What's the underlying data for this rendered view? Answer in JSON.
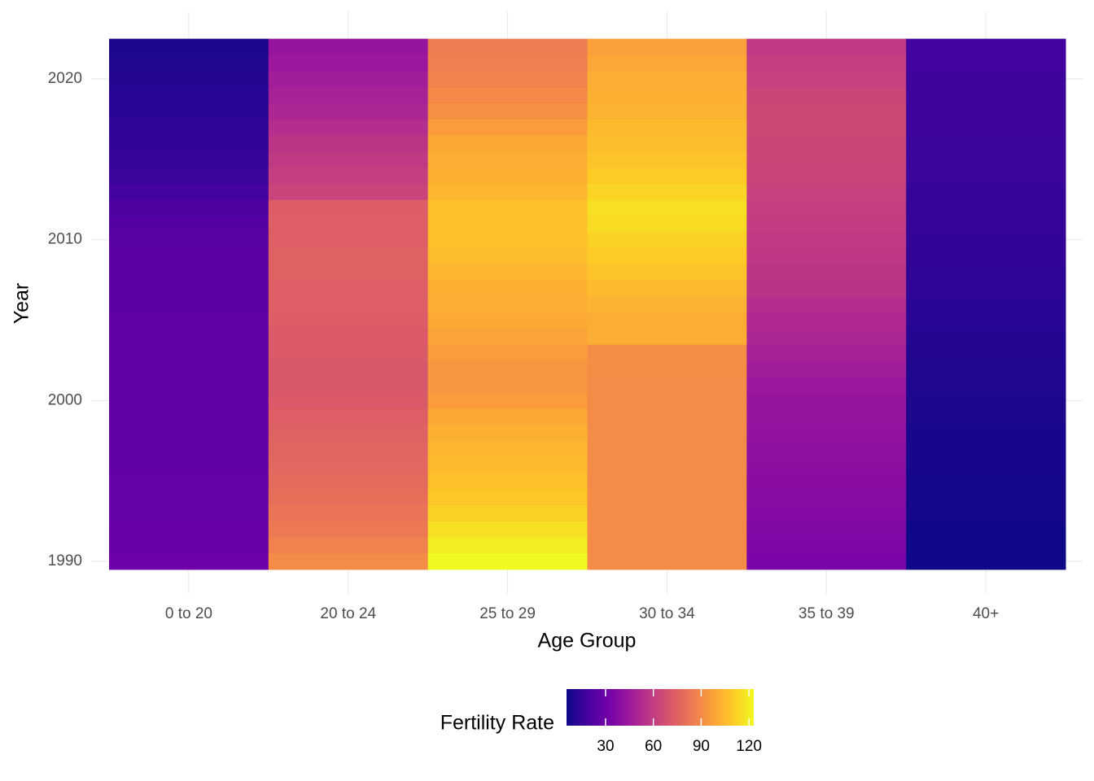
{
  "chart_data": {
    "type": "heatmap",
    "xlabel": "Age Group",
    "ylabel": "Year",
    "categories": [
      "0 to 20",
      "20 to 24",
      "25 to 29",
      "30 to 34",
      "35 to 39",
      "40+"
    ],
    "y": [
      1990,
      1991,
      1992,
      1993,
      1994,
      1995,
      1996,
      1997,
      1998,
      1999,
      2000,
      2001,
      2002,
      2003,
      2004,
      2005,
      2006,
      2007,
      2008,
      2009,
      2010,
      2011,
      2012,
      2013,
      2014,
      2015,
      2016,
      2017,
      2018,
      2019,
      2020,
      2021,
      2022
    ],
    "values": [
      [
        30,
        29,
        29,
        28,
        28,
        28,
        27,
        27,
        27,
        27,
        27,
        26,
        26,
        26,
        26,
        26,
        25,
        25,
        25,
        25,
        24,
        23,
        21,
        18,
        16,
        15,
        14,
        13,
        12,
        12,
        11,
        10,
        9
      ],
      [
        90,
        87,
        84,
        82,
        80,
        78,
        77,
        76,
        75,
        74,
        72,
        71,
        71,
        72,
        72,
        73,
        74,
        74,
        75,
        75,
        74,
        74,
        73,
        63,
        61,
        59,
        57,
        54,
        51,
        49,
        47,
        45,
        43
      ],
      [
        123,
        120,
        116,
        112,
        109,
        107,
        105,
        104,
        102,
        100,
        96,
        94,
        94,
        96,
        98,
        100,
        101,
        102,
        104,
        106,
        107,
        107,
        107,
        104,
        102,
        101,
        100,
        96,
        92,
        89,
        87,
        86,
        85
      ],
      [
        90,
        90,
        90,
        90,
        90,
        90,
        90,
        90,
        90,
        90,
        90,
        90,
        91,
        91,
        101,
        101,
        103,
        105,
        108,
        110,
        112,
        115,
        116,
        113,
        110,
        108,
        106,
        105,
        103,
        102,
        101,
        99,
        97
      ],
      [
        34,
        35,
        36,
        37,
        38,
        39,
        40,
        41,
        42,
        43,
        43,
        45,
        47,
        49,
        51,
        52,
        54,
        56,
        57,
        58,
        59,
        60,
        61,
        62,
        63,
        64,
        64,
        65,
        65,
        64,
        62,
        61,
        59
      ],
      [
        6,
        6,
        6,
        7,
        7,
        7,
        8,
        8,
        8,
        9,
        9,
        10,
        10,
        11,
        11,
        12,
        12,
        13,
        13,
        14,
        14,
        15,
        15,
        15,
        16,
        16,
        16,
        17,
        17,
        17,
        17,
        18,
        18
      ]
    ],
    "ylim": [
      1989.5,
      2022.5
    ],
    "yticks": [
      1990,
      2000,
      2010,
      2020
    ],
    "grid": true,
    "colorbar": {
      "title": "Fertility Rate",
      "lim": [
        5.5,
        123
      ],
      "ticks": [
        30,
        60,
        90,
        120
      ],
      "position": "bottom",
      "colors": [
        "#0d0887",
        "#46039f",
        "#7201a8",
        "#9c179e",
        "#bd3786",
        "#d8576b",
        "#ed7953",
        "#fb9f3a",
        "#fdca26",
        "#f0f921"
      ]
    }
  }
}
